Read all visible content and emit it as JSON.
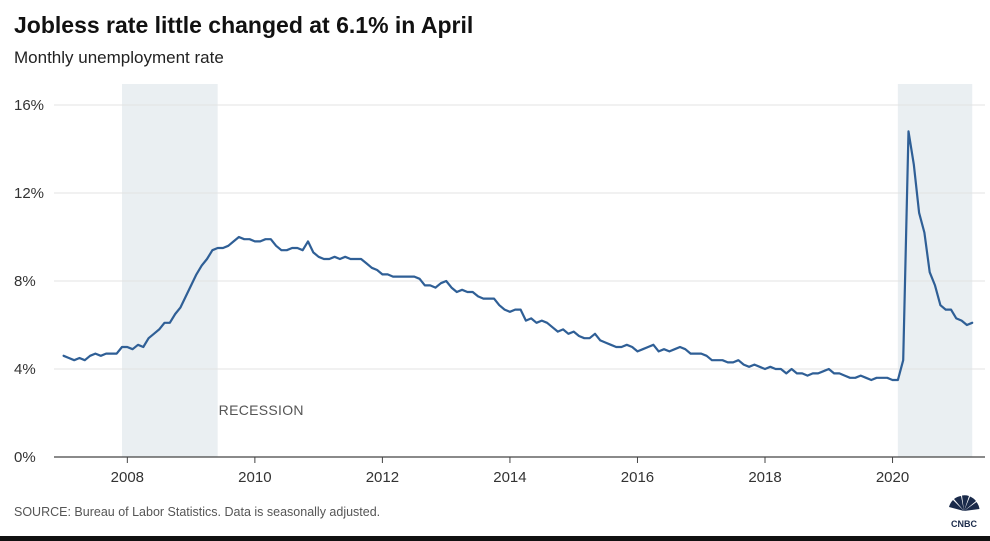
{
  "header": {
    "title": "Jobless rate little changed at 6.1% in April",
    "subtitle": "Monthly unemployment rate"
  },
  "footer": {
    "source": "SOURCE: Bureau of Labor Statistics. Data is seasonally adjusted.",
    "logo_text": "CNBC"
  },
  "colors": {
    "line": "#2f5f96",
    "recession_band": "#eaeff2",
    "gridline": "#e3e3e3",
    "axis": "#444444"
  },
  "chart_data": {
    "type": "line",
    "title": "Jobless rate little changed at 6.1% in April",
    "subtitle": "Monthly unemployment rate",
    "xlabel": "",
    "ylabel": "",
    "ylim": [
      0,
      16
    ],
    "xlim": [
      "2007-01",
      "2021-04"
    ],
    "grid": true,
    "y_ticks": [
      0,
      4,
      8,
      12,
      16
    ],
    "y_tick_labels": [
      "0%",
      "4%",
      "8%",
      "12%",
      "16%"
    ],
    "x_ticks": [
      "2008",
      "2010",
      "2012",
      "2014",
      "2016",
      "2018",
      "2020"
    ],
    "x_tick_labels": [
      "2008",
      "2010",
      "2012",
      "2014",
      "2016",
      "2018",
      "2020"
    ],
    "recessions": [
      {
        "start": "2007-12",
        "end": "2009-06",
        "label": "RECESSION"
      },
      {
        "start": "2020-02",
        "end": "2021-04",
        "label": ""
      }
    ],
    "series": [
      {
        "x": [
          "2007-01",
          "2007-02",
          "2007-03",
          "2007-04",
          "2007-05",
          "2007-06",
          "2007-07",
          "2007-08",
          "2007-09",
          "2007-10",
          "2007-11",
          "2007-12",
          "2008-01",
          "2008-02",
          "2008-03",
          "2008-04",
          "2008-05",
          "2008-06",
          "2008-07",
          "2008-08",
          "2008-09",
          "2008-10",
          "2008-11",
          "2008-12",
          "2009-01",
          "2009-02",
          "2009-03",
          "2009-04",
          "2009-05",
          "2009-06",
          "2009-07",
          "2009-08",
          "2009-09",
          "2009-10",
          "2009-11",
          "2009-12",
          "2010-01",
          "2010-02",
          "2010-03",
          "2010-04",
          "2010-05",
          "2010-06",
          "2010-07",
          "2010-08",
          "2010-09",
          "2010-10",
          "2010-11",
          "2010-12",
          "2011-01",
          "2011-02",
          "2011-03",
          "2011-04",
          "2011-05",
          "2011-06",
          "2011-07",
          "2011-08",
          "2011-09",
          "2011-10",
          "2011-11",
          "2011-12",
          "2012-01",
          "2012-02",
          "2012-03",
          "2012-04",
          "2012-05",
          "2012-06",
          "2012-07",
          "2012-08",
          "2012-09",
          "2012-10",
          "2012-11",
          "2012-12",
          "2013-01",
          "2013-02",
          "2013-03",
          "2013-04",
          "2013-05",
          "2013-06",
          "2013-07",
          "2013-08",
          "2013-09",
          "2013-10",
          "2013-11",
          "2013-12",
          "2014-01",
          "2014-02",
          "2014-03",
          "2014-04",
          "2014-05",
          "2014-06",
          "2014-07",
          "2014-08",
          "2014-09",
          "2014-10",
          "2014-11",
          "2014-12",
          "2015-01",
          "2015-02",
          "2015-03",
          "2015-04",
          "2015-05",
          "2015-06",
          "2015-07",
          "2015-08",
          "2015-09",
          "2015-10",
          "2015-11",
          "2015-12",
          "2016-01",
          "2016-02",
          "2016-03",
          "2016-04",
          "2016-05",
          "2016-06",
          "2016-07",
          "2016-08",
          "2016-09",
          "2016-10",
          "2016-11",
          "2016-12",
          "2017-01",
          "2017-02",
          "2017-03",
          "2017-04",
          "2017-05",
          "2017-06",
          "2017-07",
          "2017-08",
          "2017-09",
          "2017-10",
          "2017-11",
          "2017-12",
          "2018-01",
          "2018-02",
          "2018-03",
          "2018-04",
          "2018-05",
          "2018-06",
          "2018-07",
          "2018-08",
          "2018-09",
          "2018-10",
          "2018-11",
          "2018-12",
          "2019-01",
          "2019-02",
          "2019-03",
          "2019-04",
          "2019-05",
          "2019-06",
          "2019-07",
          "2019-08",
          "2019-09",
          "2019-10",
          "2019-11",
          "2019-12",
          "2020-01",
          "2020-02",
          "2020-03",
          "2020-04",
          "2020-05",
          "2020-06",
          "2020-07",
          "2020-08",
          "2020-09",
          "2020-10",
          "2020-11",
          "2020-12",
          "2021-01",
          "2021-02",
          "2021-03",
          "2021-04"
        ],
        "values": [
          4.6,
          4.5,
          4.4,
          4.5,
          4.4,
          4.6,
          4.7,
          4.6,
          4.7,
          4.7,
          4.7,
          5.0,
          5.0,
          4.9,
          5.1,
          5.0,
          5.4,
          5.6,
          5.8,
          6.1,
          6.1,
          6.5,
          6.8,
          7.3,
          7.8,
          8.3,
          8.7,
          9.0,
          9.4,
          9.5,
          9.5,
          9.6,
          9.8,
          10.0,
          9.9,
          9.9,
          9.8,
          9.8,
          9.9,
          9.9,
          9.6,
          9.4,
          9.4,
          9.5,
          9.5,
          9.4,
          9.8,
          9.3,
          9.1,
          9.0,
          9.0,
          9.1,
          9.0,
          9.1,
          9.0,
          9.0,
          9.0,
          8.8,
          8.6,
          8.5,
          8.3,
          8.3,
          8.2,
          8.2,
          8.2,
          8.2,
          8.2,
          8.1,
          7.8,
          7.8,
          7.7,
          7.9,
          8.0,
          7.7,
          7.5,
          7.6,
          7.5,
          7.5,
          7.3,
          7.2,
          7.2,
          7.2,
          6.9,
          6.7,
          6.6,
          6.7,
          6.7,
          6.2,
          6.3,
          6.1,
          6.2,
          6.1,
          5.9,
          5.7,
          5.8,
          5.6,
          5.7,
          5.5,
          5.4,
          5.4,
          5.6,
          5.3,
          5.2,
          5.1,
          5.0,
          5.0,
          5.1,
          5.0,
          4.8,
          4.9,
          5.0,
          5.1,
          4.8,
          4.9,
          4.8,
          4.9,
          5.0,
          4.9,
          4.7,
          4.7,
          4.7,
          4.6,
          4.4,
          4.4,
          4.4,
          4.3,
          4.3,
          4.4,
          4.2,
          4.1,
          4.2,
          4.1,
          4.0,
          4.1,
          4.0,
          4.0,
          3.8,
          4.0,
          3.8,
          3.8,
          3.7,
          3.8,
          3.8,
          3.9,
          4.0,
          3.8,
          3.8,
          3.7,
          3.6,
          3.6,
          3.7,
          3.6,
          3.5,
          3.6,
          3.6,
          3.6,
          3.5,
          3.5,
          4.4,
          14.8,
          13.3,
          11.1,
          10.2,
          8.4,
          7.8,
          6.9,
          6.7,
          6.7,
          6.3,
          6.2,
          6.0,
          6.1
        ]
      }
    ]
  }
}
